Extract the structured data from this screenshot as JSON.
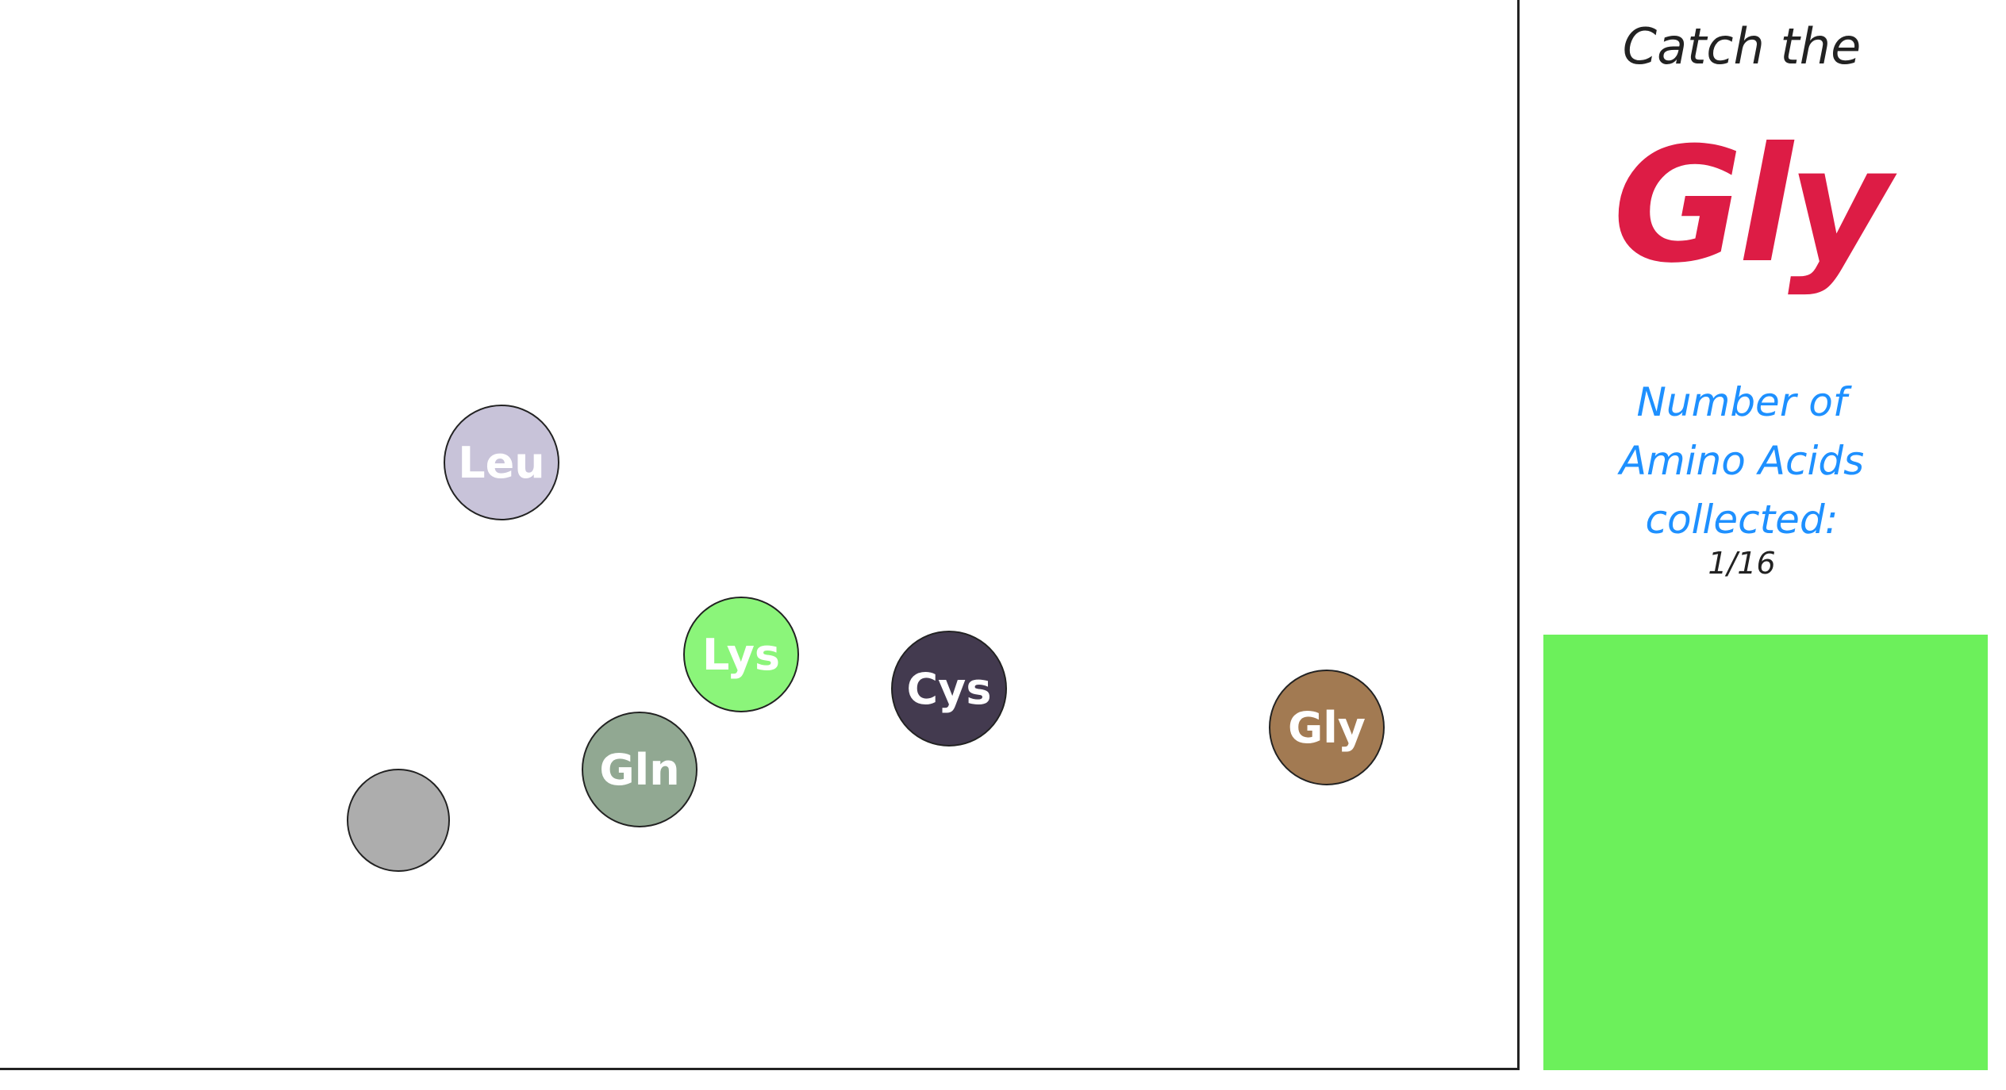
{
  "game": {
    "balls": [
      {
        "id": "leu",
        "label": "Leu",
        "color": "#c8c3d9"
      },
      {
        "id": "lys",
        "label": "Lys",
        "color": "#8bf57a"
      },
      {
        "id": "cys",
        "label": "Cys",
        "color": "#433a4f"
      },
      {
        "id": "gln",
        "label": "Gln",
        "color": "#91a892"
      },
      {
        "id": "gly",
        "label": "Gly",
        "color": "#a27a52"
      },
      {
        "id": "empty",
        "label": "",
        "color": "#adadad"
      }
    ]
  },
  "sidebar": {
    "heading": "Catch the",
    "target": "Gly",
    "target_color": "#dd1c45",
    "count_label_line1": "Number of",
    "count_label_line2": "Amino Acids",
    "count_label_line3": "collected:",
    "count_label_color": "#1e90ff",
    "count_value": "1/16",
    "basket_color": "#6cf05b"
  }
}
